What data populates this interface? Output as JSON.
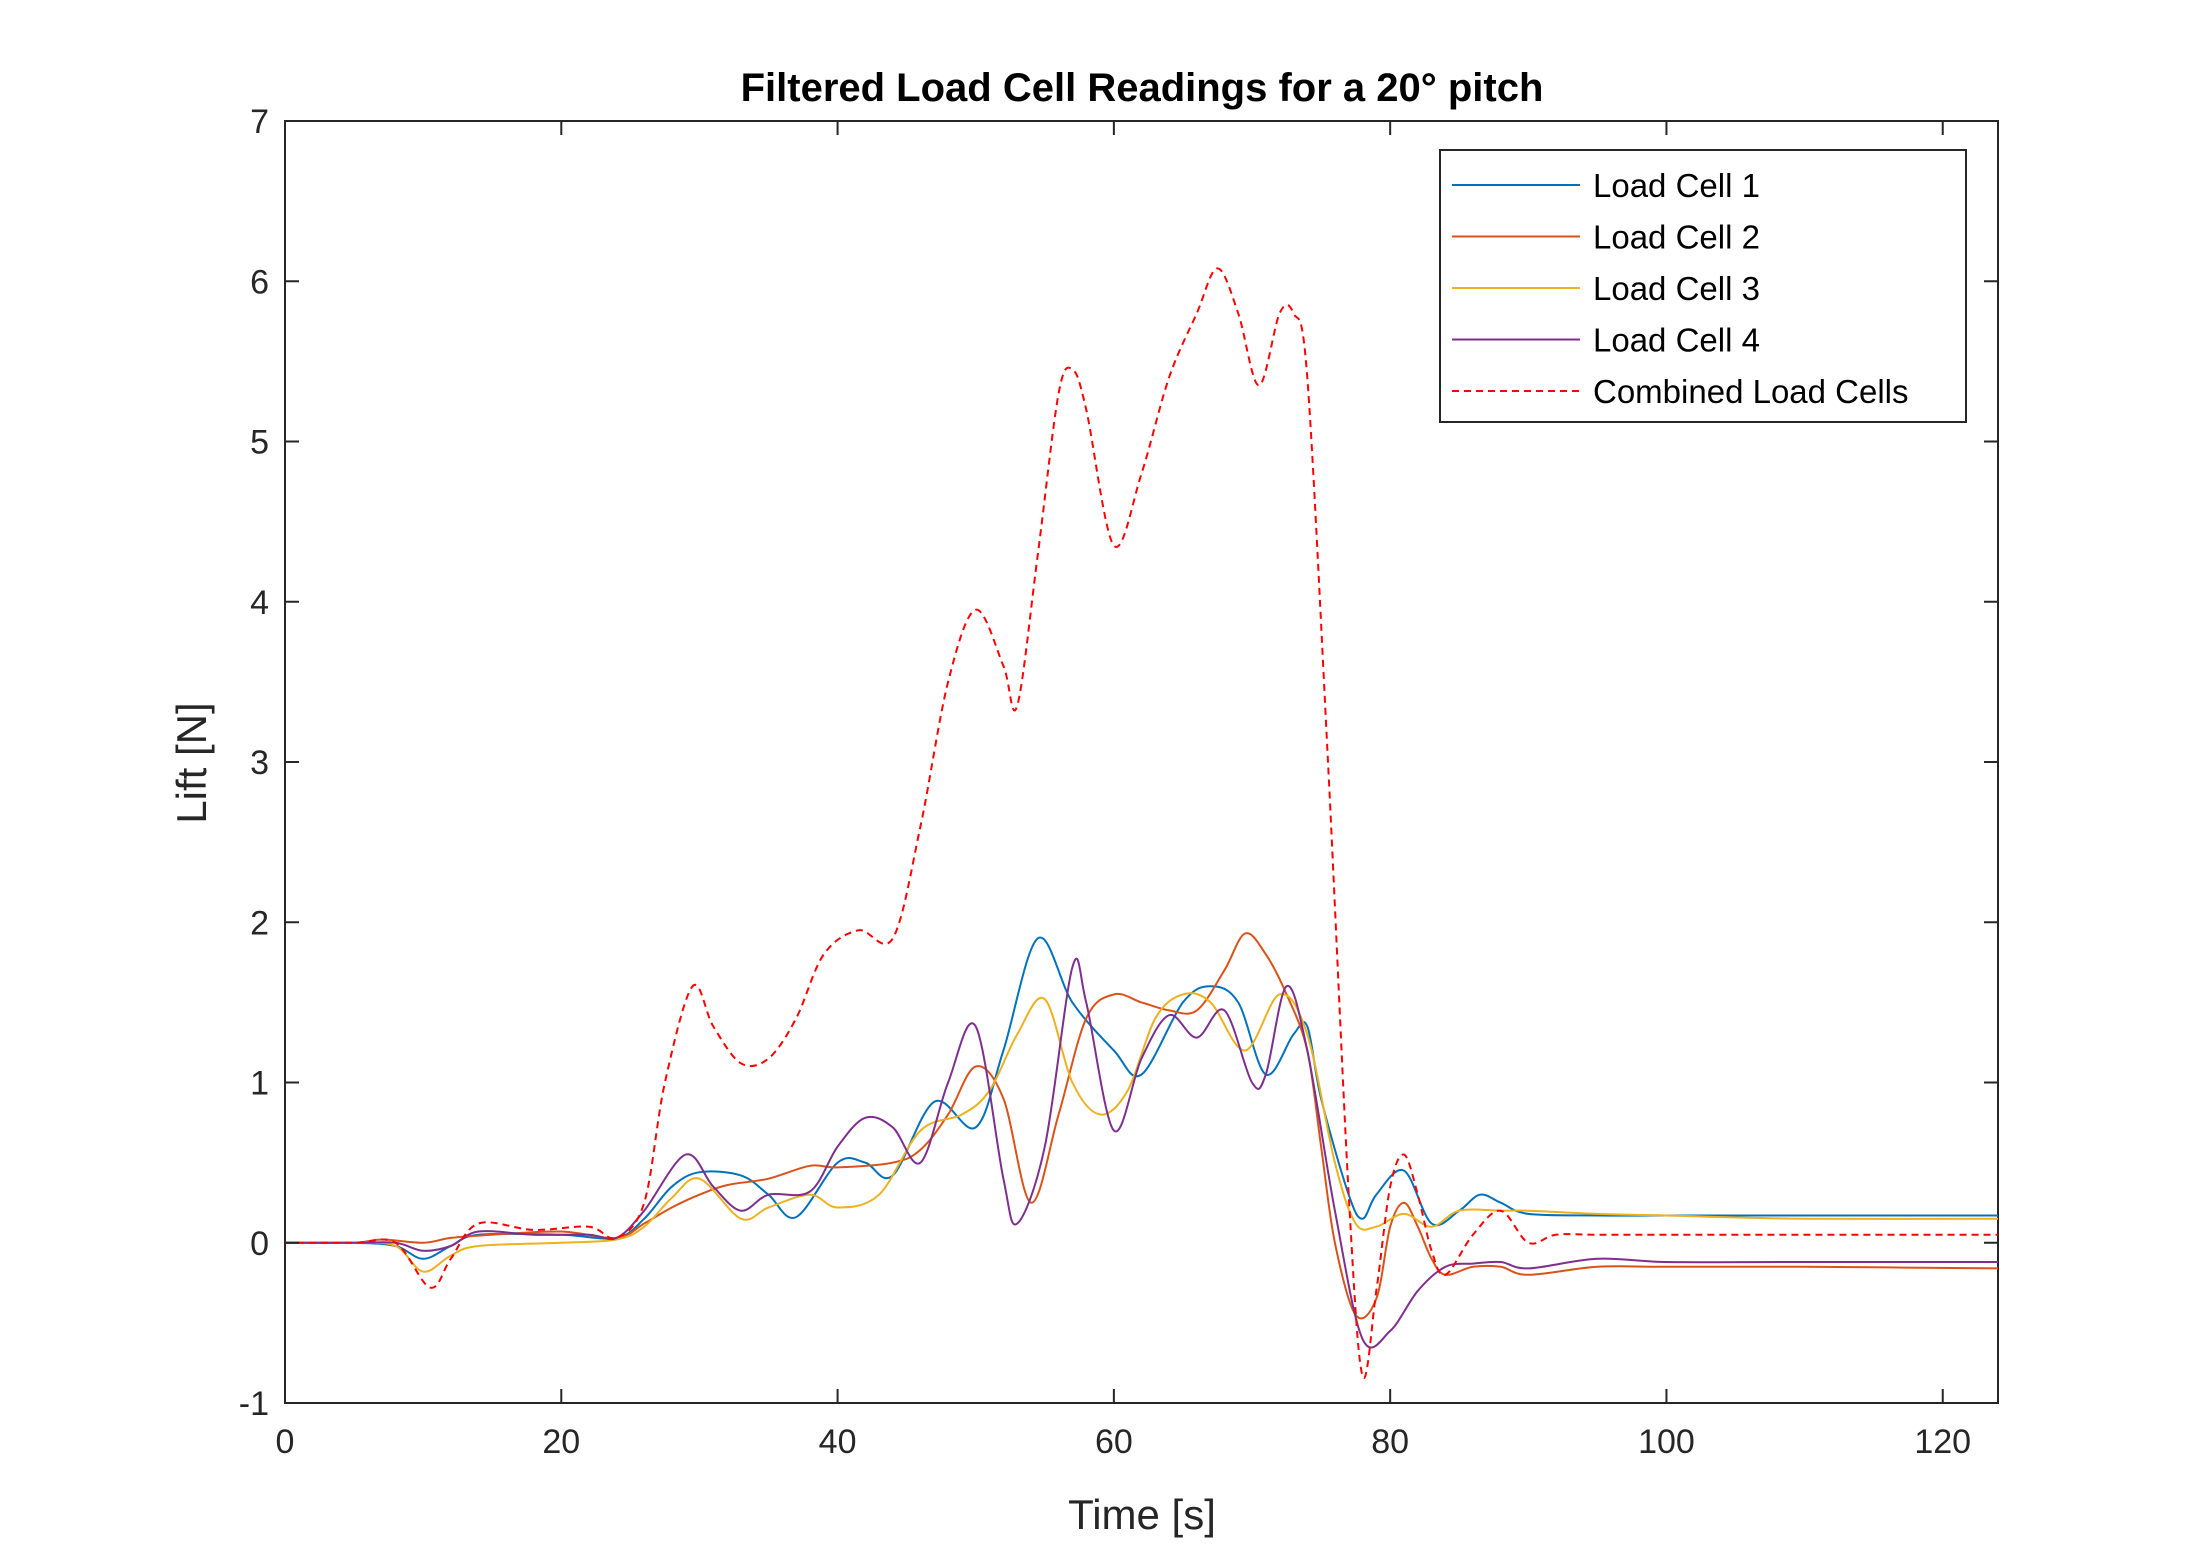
{
  "chart_data": {
    "type": "line",
    "title": "Filtered Load Cell Readings for a 20° pitch",
    "xlabel": "Time [s]",
    "ylabel": "Lift [N]",
    "xlim": [
      0,
      124
    ],
    "ylim": [
      -1,
      7
    ],
    "xticks": [
      0,
      20,
      40,
      60,
      80,
      100,
      120
    ],
    "yticks": [
      -1,
      0,
      1,
      2,
      3,
      4,
      5,
      6,
      7
    ],
    "grid": false,
    "legend_position": "top-right",
    "series": [
      {
        "name": "Load Cell 1",
        "color": "#0072BD",
        "style": "solid",
        "x": [
          0,
          5,
          8,
          10,
          12,
          14,
          20,
          24,
          26,
          28,
          30,
          33,
          35,
          37,
          40,
          42,
          44,
          47,
          50,
          52,
          54.5,
          57,
          60,
          62,
          65,
          67,
          69,
          71,
          73,
          74,
          75,
          77,
          78,
          79,
          81,
          83,
          85,
          86.5,
          88,
          90,
          95,
          100,
          110,
          124
        ],
        "y": [
          0,
          0,
          -0.02,
          -0.1,
          -0.02,
          0.05,
          0.05,
          0.03,
          0.15,
          0.35,
          0.44,
          0.42,
          0.3,
          0.16,
          0.5,
          0.5,
          0.42,
          0.88,
          0.72,
          1.2,
          1.9,
          1.5,
          1.2,
          1.05,
          1.5,
          1.6,
          1.5,
          1.05,
          1.3,
          1.35,
          0.9,
          0.3,
          0.15,
          0.3,
          0.45,
          0.12,
          0.2,
          0.3,
          0.25,
          0.18,
          0.17,
          0.17,
          0.17,
          0.17
        ]
      },
      {
        "name": "Load Cell 2",
        "color": "#D95319",
        "style": "solid",
        "x": [
          0,
          5,
          7,
          10,
          12,
          15,
          20,
          24,
          26,
          28,
          30,
          32,
          35,
          38,
          40,
          44,
          46,
          48,
          50,
          52,
          54,
          56,
          58,
          60,
          62,
          64,
          66,
          68,
          69.5,
          71,
          72.5,
          74,
          75,
          76,
          77.5,
          79,
          80,
          81,
          82,
          83,
          84,
          86,
          88,
          90,
          95,
          100,
          110,
          124
        ],
        "y": [
          0,
          0,
          0.02,
          0,
          0.03,
          0.05,
          0.07,
          0.03,
          0.12,
          0.22,
          0.3,
          0.36,
          0.4,
          0.48,
          0.47,
          0.5,
          0.58,
          0.8,
          1.1,
          0.9,
          0.25,
          0.8,
          1.4,
          1.55,
          1.5,
          1.45,
          1.45,
          1.7,
          1.93,
          1.8,
          1.55,
          1.2,
          0.6,
          0,
          -0.45,
          -0.35,
          0.1,
          0.25,
          0.1,
          -0.1,
          -0.2,
          -0.15,
          -0.15,
          -0.2,
          -0.15,
          -0.15,
          -0.15,
          -0.16
        ]
      },
      {
        "name": "Load Cell 3",
        "color": "#EDB120",
        "style": "solid",
        "x": [
          0,
          5,
          8,
          10,
          12,
          14,
          20,
          24,
          26,
          28,
          30,
          33,
          35,
          38,
          40,
          43,
          46,
          49,
          51,
          53,
          55,
          57,
          59,
          61,
          63,
          65,
          67,
          69.5,
          72,
          74,
          76,
          77.5,
          79,
          81,
          83,
          85,
          88,
          90,
          95,
          100,
          110,
          124
        ],
        "y": [
          0,
          0,
          -0.02,
          -0.18,
          -0.08,
          -0.02,
          0,
          0.02,
          0.1,
          0.28,
          0.4,
          0.15,
          0.22,
          0.3,
          0.22,
          0.3,
          0.7,
          0.8,
          0.95,
          1.3,
          1.52,
          1.0,
          0.8,
          0.95,
          1.4,
          1.55,
          1.5,
          1.2,
          1.55,
          1.3,
          0.5,
          0.12,
          0.1,
          0.18,
          0.1,
          0.2,
          0.2,
          0.2,
          0.18,
          0.17,
          0.15,
          0.15
        ]
      },
      {
        "name": "Load Cell 4",
        "color": "#7E2F8E",
        "style": "solid",
        "x": [
          0,
          5,
          8,
          10,
          12,
          14,
          18,
          22,
          24,
          26,
          29,
          31,
          33,
          35,
          38,
          40,
          42,
          44,
          46,
          48,
          50,
          52,
          53,
          55,
          57,
          58,
          60,
          62,
          64,
          66,
          68,
          70,
          71,
          72.5,
          74,
          76,
          78,
          80,
          82,
          84,
          86,
          88,
          90,
          95,
          100,
          110,
          124
        ],
        "y": [
          0,
          0,
          0,
          -0.05,
          -0.02,
          0.07,
          0.05,
          0.05,
          0.03,
          0.2,
          0.55,
          0.35,
          0.2,
          0.3,
          0.32,
          0.6,
          0.78,
          0.72,
          0.5,
          1.0,
          1.35,
          0.4,
          0.12,
          0.6,
          1.72,
          1.5,
          0.7,
          1.15,
          1.42,
          1.28,
          1.45,
          1.0,
          1.05,
          1.6,
          1.2,
          0.2,
          -0.6,
          -0.55,
          -0.3,
          -0.15,
          -0.13,
          -0.12,
          -0.16,
          -0.1,
          -0.12,
          -0.12,
          -0.12
        ]
      },
      {
        "name": "Combined Load Cells",
        "color": "#FF0000",
        "style": "dashed",
        "x": [
          0,
          5,
          8,
          10.5,
          12,
          14,
          18,
          22,
          24,
          26,
          27.5,
          29.5,
          31,
          33,
          35,
          37,
          39,
          41.5,
          44,
          46,
          48,
          50,
          52,
          53,
          54.5,
          56,
          57,
          58,
          60,
          62,
          64,
          66,
          67.5,
          69,
          70.5,
          72,
          73,
          74,
          75.5,
          77,
          78,
          79,
          80,
          81,
          82,
          83,
          84,
          86,
          88,
          90,
          92,
          95,
          100,
          110,
          124
        ],
        "y": [
          0,
          0,
          0,
          -0.28,
          -0.1,
          0.12,
          0.08,
          0.1,
          0.03,
          0.25,
          1.0,
          1.6,
          1.35,
          1.12,
          1.15,
          1.4,
          1.8,
          1.95,
          1.9,
          2.6,
          3.5,
          3.95,
          3.6,
          3.35,
          4.3,
          5.3,
          5.45,
          5.2,
          4.35,
          4.8,
          5.4,
          5.8,
          6.08,
          5.8,
          5.35,
          5.8,
          5.8,
          5.4,
          3.0,
          0.3,
          -0.83,
          -0.3,
          0.35,
          0.55,
          0.3,
          -0.05,
          -0.2,
          0.05,
          0.2,
          0,
          0.05,
          0.05,
          0.05,
          0.05,
          0.05
        ]
      }
    ]
  }
}
